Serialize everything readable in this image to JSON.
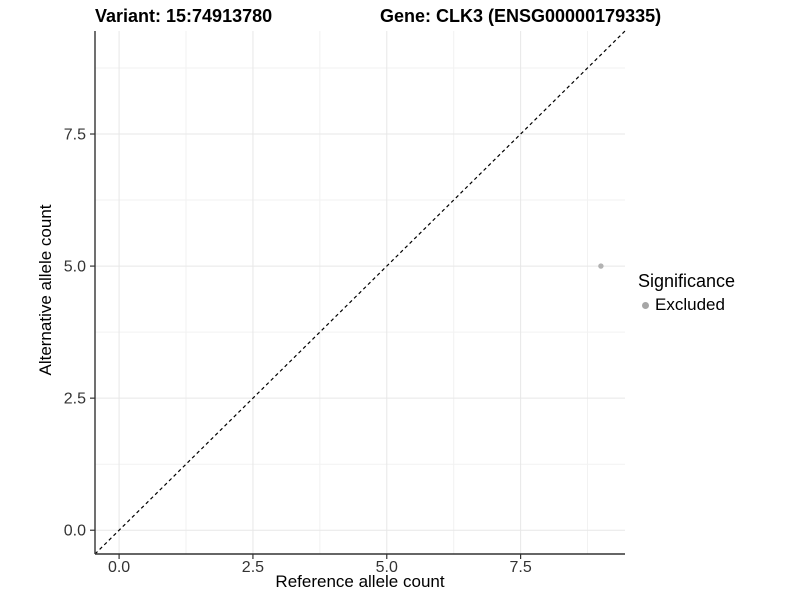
{
  "chart_data": {
    "type": "scatter",
    "title_variant": "Variant: 15:74913780",
    "title_gene": "Gene: CLK3 (ENSG00000179335)",
    "xlabel": "Reference allele count",
    "ylabel": "Alternative allele count",
    "xlim": [
      -0.45,
      9.45
    ],
    "ylim": [
      -0.45,
      9.45
    ],
    "x_major_ticks": [
      0,
      2.5,
      5,
      7.5
    ],
    "x_tick_labels": [
      "0.0",
      "2.5",
      "5.0",
      "7.5"
    ],
    "x_minor_breaks": [
      1.25,
      3.75,
      6.25,
      8.75
    ],
    "y_major_ticks": [
      0,
      2.5,
      5,
      7.5
    ],
    "y_tick_labels": [
      "0.0",
      "2.5",
      "5.0",
      "7.5"
    ],
    "y_minor_breaks": [
      1.25,
      3.75,
      6.25,
      8.75
    ],
    "grid": true,
    "legend_position": "right",
    "series": [
      {
        "name": "Excluded",
        "color": "#b3b3b3",
        "points": [
          {
            "x": 9,
            "y": 5
          }
        ]
      }
    ],
    "reference_line": {
      "type": "identity",
      "style": "dashed",
      "from": [
        -0.45,
        -0.45
      ],
      "to": [
        9.45,
        9.45
      ],
      "color": "#000000"
    }
  },
  "legend": {
    "title": "Significance",
    "items": [
      {
        "label": "Excluded",
        "color": "#a6a6a6"
      }
    ]
  },
  "colors": {
    "grid_major": "#e7e7e7",
    "grid_minor": "#f2f2f2",
    "axis_line": "#333333",
    "tick_label": "#333333"
  }
}
